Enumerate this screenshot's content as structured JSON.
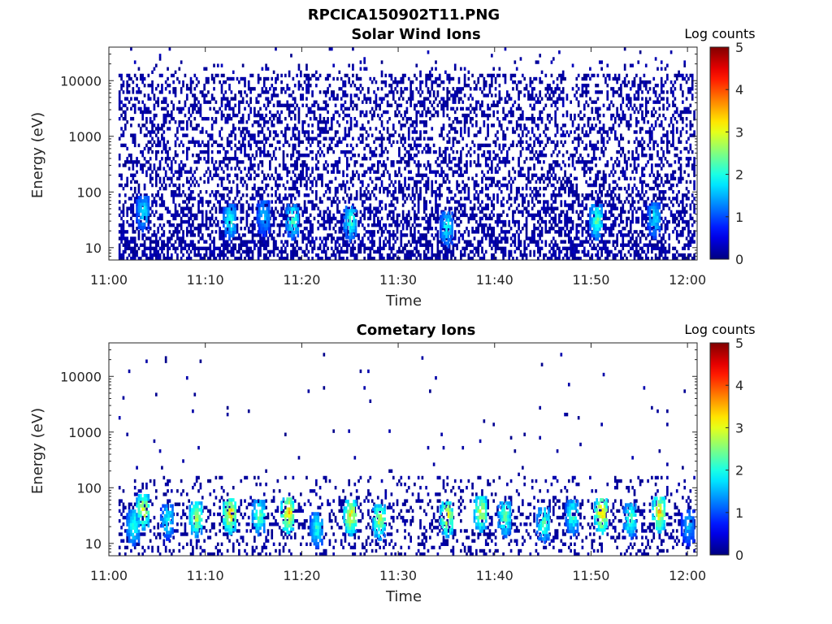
{
  "figure": {
    "title": "RPCICA150902T11.PNG"
  },
  "colormap": "jet",
  "chart_data": [
    {
      "type": "heatmap",
      "title": "Solar Wind Ions",
      "xlabel": "Time",
      "ylabel": "Energy (eV)",
      "x_ticks": [
        "11:00",
        "11:10",
        "11:20",
        "11:30",
        "11:40",
        "11:50",
        "12:00"
      ],
      "y_ticks": [
        "10",
        "100",
        "1000",
        "10000"
      ],
      "y_scale": "log",
      "x_range": [
        "11:00",
        "12:01"
      ],
      "y_range": [
        6,
        40000
      ],
      "colorbar": {
        "label": "Log counts",
        "ticks": [
          "0",
          "1",
          "2",
          "3",
          "4",
          "5"
        ],
        "range": [
          0,
          5
        ]
      },
      "hotspots": [
        {
          "t": "11:03.5",
          "e": 42,
          "v": 2.0
        },
        {
          "t": "11:12.5",
          "e": 30,
          "v": 2.2
        },
        {
          "t": "11:16",
          "e": 35,
          "v": 1.8
        },
        {
          "t": "11:19",
          "e": 30,
          "v": 2.4
        },
        {
          "t": "11:25",
          "e": 28,
          "v": 2.3
        },
        {
          "t": "11:35",
          "e": 22,
          "v": 2.1
        },
        {
          "t": "11:50.5",
          "e": 30,
          "v": 2.5
        },
        {
          "t": "11:56.5",
          "e": 32,
          "v": 2.0
        }
      ]
    },
    {
      "type": "heatmap",
      "title": "Cometary Ions",
      "xlabel": "Time",
      "ylabel": "Energy (eV)",
      "x_ticks": [
        "11:00",
        "11:10",
        "11:20",
        "11:30",
        "11:40",
        "11:50",
        "12:00"
      ],
      "y_ticks": [
        "10",
        "100",
        "1000",
        "10000"
      ],
      "y_scale": "log",
      "x_range": [
        "11:00",
        "12:01"
      ],
      "y_range": [
        6,
        40000
      ],
      "colorbar": {
        "label": "Log counts",
        "ticks": [
          "0",
          "1",
          "2",
          "3",
          "4",
          "5"
        ],
        "range": [
          0,
          5
        ]
      },
      "hotspots": [
        {
          "t": "11:02.5",
          "e": 20,
          "v": 2.3
        },
        {
          "t": "11:03.5",
          "e": 38,
          "v": 3.2
        },
        {
          "t": "11:06",
          "e": 25,
          "v": 2.1
        },
        {
          "t": "11:09",
          "e": 28,
          "v": 3.0
        },
        {
          "t": "11:12.5",
          "e": 32,
          "v": 3.6
        },
        {
          "t": "11:15.5",
          "e": 30,
          "v": 2.6
        },
        {
          "t": "11:18.5",
          "e": 33,
          "v": 3.7
        },
        {
          "t": "11:21.5",
          "e": 18,
          "v": 2.2
        },
        {
          "t": "11:25",
          "e": 30,
          "v": 3.4
        },
        {
          "t": "11:28",
          "e": 25,
          "v": 3.0
        },
        {
          "t": "11:35",
          "e": 28,
          "v": 3.3
        },
        {
          "t": "11:38.5",
          "e": 35,
          "v": 3.2
        },
        {
          "t": "11:41",
          "e": 28,
          "v": 2.6
        },
        {
          "t": "11:45",
          "e": 22,
          "v": 2.5
        },
        {
          "t": "11:48",
          "e": 30,
          "v": 2.4
        },
        {
          "t": "11:51",
          "e": 32,
          "v": 3.6
        },
        {
          "t": "11:54",
          "e": 26,
          "v": 2.5
        },
        {
          "t": "11:57",
          "e": 34,
          "v": 3.5
        },
        {
          "t": "12:00",
          "e": 20,
          "v": 1.8
        }
      ]
    }
  ]
}
